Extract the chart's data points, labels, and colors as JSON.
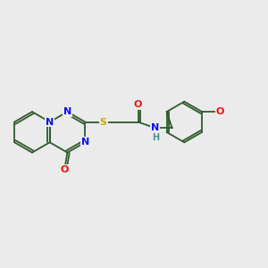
{
  "background_color": "#ebebeb",
  "bond_color": "#3a6b3a",
  "ring_bond_color": "#2d5a2d",
  "atom_colors": {
    "N": "#1010ee",
    "O": "#ee1010",
    "S": "#ccaa00",
    "NH": "#4a9090",
    "C": "#2d5a2d"
  },
  "figsize": [
    3.0,
    3.0
  ],
  "dpi": 100
}
